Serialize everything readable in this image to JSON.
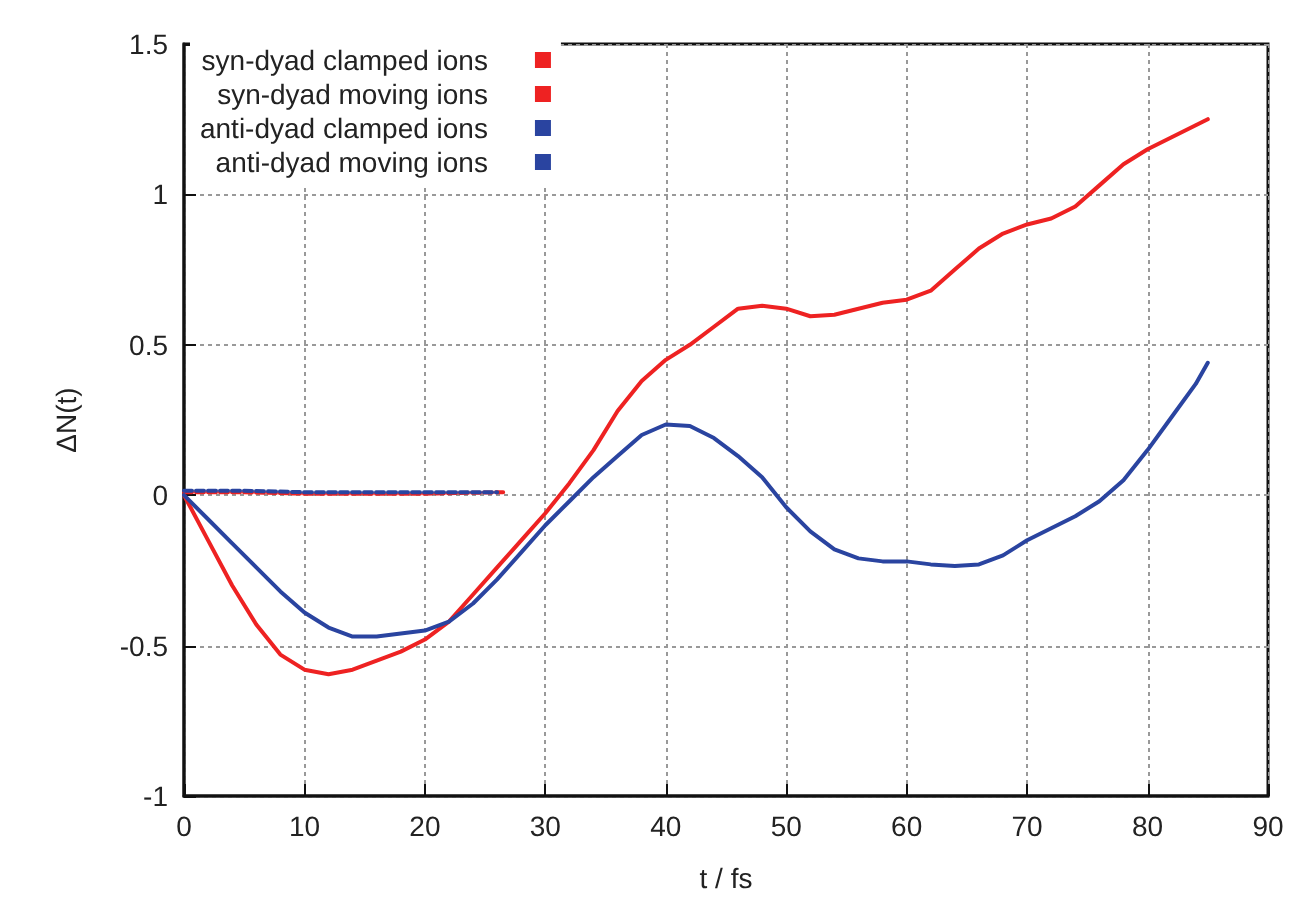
{
  "chart_data": {
    "type": "line",
    "xlabel": "t / fs",
    "ylabel": "ΔN(t)",
    "xlim": [
      0,
      90
    ],
    "xticks": [
      0,
      10,
      20,
      30,
      40,
      50,
      60,
      70,
      80,
      90
    ],
    "ylim": [
      -1,
      1.5
    ],
    "yticks": [
      -1,
      -0.5,
      0,
      0.5,
      1,
      1.5
    ],
    "grid": true,
    "legend": "top left",
    "marker": "none",
    "series": [
      {
        "name": "syn-dyad clamped ions",
        "color": "#ee2222",
        "line_style": "dashed",
        "x": [
          0,
          5,
          10,
          15,
          20,
          26.5
        ],
        "values": [
          0.01,
          0.01,
          0.005,
          0.005,
          0.005,
          0.01
        ]
      },
      {
        "name": "syn-dyad moving ions",
        "color": "#ee2222",
        "line_style": "solid",
        "x": [
          0,
          2,
          4,
          6,
          8,
          10,
          12,
          14,
          16,
          18,
          20,
          22,
          24,
          26,
          28,
          30,
          32,
          34,
          36,
          38,
          40,
          42,
          44,
          46,
          48,
          50,
          52,
          54,
          56,
          58,
          60,
          62,
          64,
          66,
          68,
          70,
          72,
          74,
          76,
          78,
          80,
          82,
          84,
          85
        ],
        "values": [
          0,
          -0.15,
          -0.3,
          -0.43,
          -0.53,
          -0.58,
          -0.595,
          -0.58,
          -0.55,
          -0.52,
          -0.48,
          -0.42,
          -0.33,
          -0.24,
          -0.15,
          -0.06,
          0.04,
          0.15,
          0.28,
          0.38,
          0.45,
          0.5,
          0.56,
          0.62,
          0.63,
          0.62,
          0.595,
          0.6,
          0.62,
          0.64,
          0.65,
          0.68,
          0.75,
          0.82,
          0.87,
          0.9,
          0.92,
          0.96,
          1.03,
          1.1,
          1.15,
          1.19,
          1.23,
          1.25
        ]
      },
      {
        "name": "anti-dyad clamped ions",
        "color": "#2a44a0",
        "line_style": "dashed",
        "x": [
          0,
          5,
          10,
          15,
          20,
          26
        ],
        "values": [
          0.015,
          0.015,
          0.01,
          0.01,
          0.01,
          0.01
        ]
      },
      {
        "name": "anti-dyad moving ions",
        "color": "#2a44a0",
        "line_style": "solid",
        "x": [
          0,
          2,
          4,
          6,
          8,
          10,
          12,
          14,
          16,
          18,
          20,
          22,
          24,
          26,
          28,
          30,
          32,
          34,
          36,
          38,
          40,
          42,
          44,
          46,
          48,
          50,
          52,
          54,
          56,
          58,
          60,
          62,
          64,
          66,
          68,
          70,
          72,
          74,
          76,
          78,
          80,
          82,
          84,
          85
        ],
        "values": [
          0,
          -0.08,
          -0.16,
          -0.24,
          -0.32,
          -0.39,
          -0.44,
          -0.47,
          -0.47,
          -0.46,
          -0.45,
          -0.42,
          -0.36,
          -0.28,
          -0.19,
          -0.1,
          -0.02,
          0.06,
          0.13,
          0.2,
          0.235,
          0.23,
          0.19,
          0.13,
          0.06,
          -0.04,
          -0.12,
          -0.18,
          -0.21,
          -0.22,
          -0.22,
          -0.23,
          -0.235,
          -0.23,
          -0.2,
          -0.15,
          -0.11,
          -0.07,
          -0.02,
          0.05,
          0.15,
          0.26,
          0.37,
          0.44
        ]
      }
    ]
  }
}
